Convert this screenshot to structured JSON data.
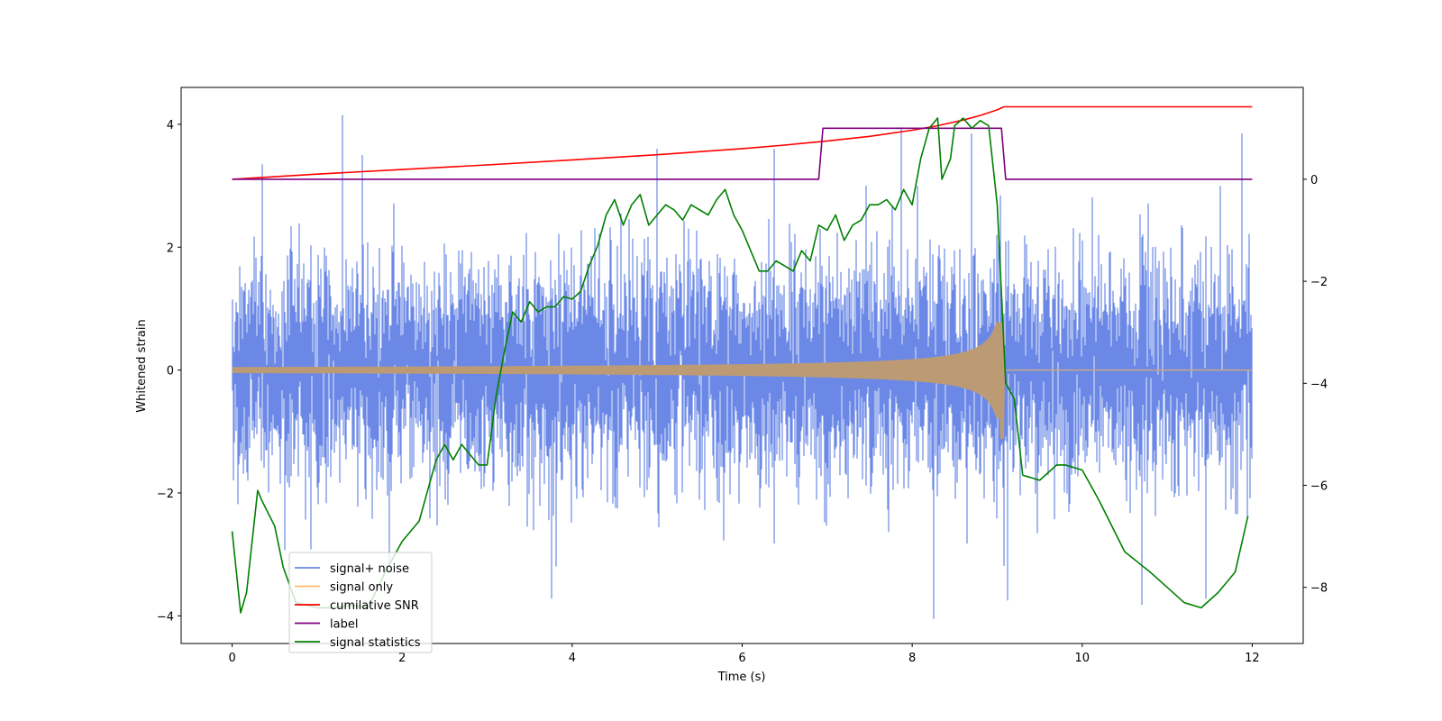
{
  "chart_data": {
    "type": "line",
    "title": "",
    "xlabel": "Time (s)",
    "ylabel": "Whitened strain",
    "y2label": "",
    "xlim": [
      -0.6,
      12.6
    ],
    "ylim": [
      -4.45,
      4.6
    ],
    "y2lim": [
      -9.1,
      1.8
    ],
    "x_ticks": [
      0,
      2,
      4,
      6,
      8,
      10,
      12
    ],
    "x_tick_labels": [
      "0",
      "2",
      "4",
      "6",
      "8",
      "10",
      "12"
    ],
    "y_ticks": [
      -4,
      -2,
      0,
      2,
      4
    ],
    "y_tick_labels": [
      "−4",
      "−2",
      "0",
      "2",
      "4"
    ],
    "y2_ticks": [
      -8,
      -6,
      -4,
      -2,
      0
    ],
    "y2_tick_labels": [
      "−8",
      "−6",
      "−4",
      "−2",
      "0"
    ],
    "legend_position": "lower-left",
    "series": [
      {
        "name": "signal+ noise",
        "axis": "left",
        "color": "#6b88e6",
        "style": "dense-noise",
        "x_range": [
          0,
          12
        ],
        "noise_std": 0.85,
        "noise_peaks": [
          {
            "x": 1.3,
            "y": 4.15
          },
          {
            "x": 0.35,
            "y": 3.35
          },
          {
            "x": 1.53,
            "y": 3.5
          },
          {
            "x": 5.0,
            "y": 3.6
          },
          {
            "x": 6.38,
            "y": 3.6
          },
          {
            "x": 7.87,
            "y": 3.95
          },
          {
            "x": 8.7,
            "y": 3.85
          },
          {
            "x": 11.88,
            "y": 3.85
          },
          {
            "x": 8.25,
            "y": -4.05
          },
          {
            "x": 3.76,
            "y": -3.72
          },
          {
            "x": 11.45,
            "y": -3.72
          },
          {
            "x": 10.7,
            "y": -3.82
          },
          {
            "x": 9.12,
            "y": -3.75
          }
        ]
      },
      {
        "name": "signal only",
        "axis": "left",
        "color": "#ffbb66",
        "style": "chirp",
        "x_range": [
          0,
          12
        ],
        "merger_time": 9.08,
        "start_amplitude": 0.05,
        "merger_amplitude": 0.78,
        "merger_min": -1.12
      },
      {
        "name": "cumilative SNR",
        "axis": "right",
        "color": "#ff0000",
        "x": [
          0,
          1,
          2,
          3,
          4,
          5,
          6,
          6.5,
          7,
          7.5,
          8,
          8.3,
          8.6,
          8.8,
          9.0,
          9.08,
          12
        ],
        "y": [
          0.0,
          0.1,
          0.19,
          0.28,
          0.38,
          0.48,
          0.6,
          0.67,
          0.75,
          0.84,
          0.96,
          1.05,
          1.16,
          1.25,
          1.36,
          1.42,
          1.42
        ]
      },
      {
        "name": "label",
        "axis": "right",
        "color": "#800080",
        "x": [
          0,
          6.9,
          6.95,
          9.05,
          9.1,
          12
        ],
        "y": [
          0,
          0,
          1,
          1,
          0,
          0
        ]
      },
      {
        "name": "signal statistics",
        "axis": "right",
        "color": "#008000",
        "x": [
          0.0,
          0.1,
          0.17,
          0.3,
          0.35,
          0.5,
          0.6,
          0.75,
          1.0,
          1.2,
          1.4,
          1.6,
          1.8,
          2.0,
          2.2,
          2.4,
          2.5,
          2.6,
          2.7,
          2.8,
          2.9,
          3.0,
          3.1,
          3.2,
          3.3,
          3.4,
          3.5,
          3.6,
          3.7,
          3.8,
          3.9,
          4.0,
          4.1,
          4.2,
          4.3,
          4.4,
          4.5,
          4.6,
          4.7,
          4.8,
          4.9,
          5.0,
          5.1,
          5.2,
          5.3,
          5.4,
          5.5,
          5.6,
          5.7,
          5.8,
          5.9,
          6.0,
          6.1,
          6.2,
          6.3,
          6.4,
          6.5,
          6.6,
          6.7,
          6.8,
          6.9,
          7.0,
          7.1,
          7.2,
          7.3,
          7.4,
          7.5,
          7.6,
          7.7,
          7.8,
          7.9,
          8.0,
          8.1,
          8.2,
          8.3,
          8.35,
          8.45,
          8.5,
          8.6,
          8.7,
          8.8,
          8.9,
          9.0,
          9.1,
          9.2,
          9.3,
          9.5,
          9.7,
          9.8,
          10.0,
          10.2,
          10.5,
          10.8,
          11.0,
          11.2,
          11.4,
          11.6,
          11.8,
          11.95
        ],
        "y": [
          -6.9,
          -8.5,
          -8.1,
          -6.1,
          -6.3,
          -6.8,
          -7.6,
          -8.3,
          -8.4,
          -8.4,
          -8.35,
          -8.4,
          -7.7,
          -7.1,
          -6.7,
          -5.5,
          -5.2,
          -5.5,
          -5.2,
          -5.4,
          -5.6,
          -5.6,
          -4.3,
          -3.4,
          -2.6,
          -2.8,
          -2.4,
          -2.6,
          -2.5,
          -2.5,
          -2.3,
          -2.35,
          -2.2,
          -1.7,
          -1.3,
          -0.7,
          -0.4,
          -0.9,
          -0.5,
          -0.3,
          -0.9,
          -0.7,
          -0.5,
          -0.6,
          -0.8,
          -0.5,
          -0.6,
          -0.7,
          -0.4,
          -0.2,
          -0.7,
          -1.0,
          -1.4,
          -1.8,
          -1.8,
          -1.6,
          -1.7,
          -1.8,
          -1.4,
          -1.6,
          -0.9,
          -1.0,
          -0.7,
          -1.2,
          -0.9,
          -0.8,
          -0.5,
          -0.5,
          -0.4,
          -0.6,
          -0.2,
          -0.5,
          0.4,
          1.0,
          1.2,
          0.0,
          0.4,
          1.05,
          1.2,
          1.0,
          1.15,
          1.05,
          -0.5,
          -4.0,
          -4.3,
          -5.8,
          -5.9,
          -5.6,
          -5.6,
          -5.7,
          -6.3,
          -7.3,
          -7.7,
          -8.0,
          -8.3,
          -8.4,
          -8.1,
          -7.7,
          -6.6
        ]
      }
    ]
  },
  "legend": {
    "items": [
      {
        "label": "signal+ noise",
        "color": "#6b88e6"
      },
      {
        "label": "signal only",
        "color": "#ffbb66"
      },
      {
        "label": "cumilative SNR",
        "color": "#ff0000"
      },
      {
        "label": "label",
        "color": "#800080"
      },
      {
        "label": "signal statistics",
        "color": "#008000"
      }
    ]
  }
}
